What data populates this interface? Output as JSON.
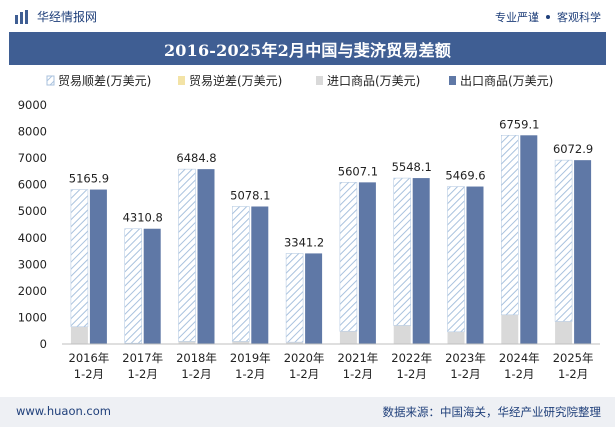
{
  "header": {
    "brand": "华经情报网",
    "tagline_left": "专业严谨",
    "tagline_right": "客观科学"
  },
  "colors": {
    "title_bg": "#3f5e93",
    "export": "#5f78a6",
    "import": "#d9d9d9",
    "surplus_hatch": "#a9c2de",
    "deficit": "#f3e3a6"
  },
  "chart_data": {
    "type": "bar",
    "title": "2016-2025年2月中国与斐济贸易差额",
    "categories": [
      "2016年\n1-2月",
      "2017年\n1-2月",
      "2018年\n1-2月",
      "2019年\n1-2月",
      "2020年\n1-2月",
      "2021年\n1-2月",
      "2022年\n1-2月",
      "2023年\n1-2月",
      "2024年\n1-2月",
      "2025年\n1-2月"
    ],
    "ylim": [
      0,
      9000
    ],
    "yticks": [
      0,
      1000,
      2000,
      3000,
      4000,
      5000,
      6000,
      7000,
      8000,
      9000
    ],
    "legend": [
      "贸易顺差(万美元)",
      "贸易逆差(万美元)",
      "进口商品(万美元)",
      "出口商品(万美元)"
    ],
    "series": [
      {
        "name": "贸易顺差(万美元)",
        "values": [
          5165.9,
          4310.8,
          6484.8,
          5078.1,
          3341.2,
          5607.1,
          5548.1,
          5469.6,
          6759.1,
          6072.9
        ]
      },
      {
        "name": "贸易逆差(万美元)",
        "values": [
          0,
          0,
          0,
          0,
          0,
          0,
          0,
          0,
          0,
          0
        ]
      },
      {
        "name": "进口商品(万美元)",
        "values": [
          650,
          30,
          100,
          100,
          70,
          480,
          700,
          460,
          1100,
          850
        ]
      },
      {
        "name": "出口商品(万美元)",
        "values": [
          5815.9,
          4340.8,
          6584.8,
          5178.1,
          3411.2,
          6087.1,
          6248.1,
          5929.6,
          7859.1,
          6922.9
        ]
      }
    ],
    "data_labels": [
      "5165.9",
      "4310.8",
      "6484.8",
      "5078.1",
      "3341.2",
      "5607.1",
      "5548.1",
      "5469.6",
      "6759.1",
      "6072.9"
    ]
  },
  "footer": {
    "website": "www.huaon.com",
    "source": "数据来源：中国海关，华经产业研究院整理"
  }
}
